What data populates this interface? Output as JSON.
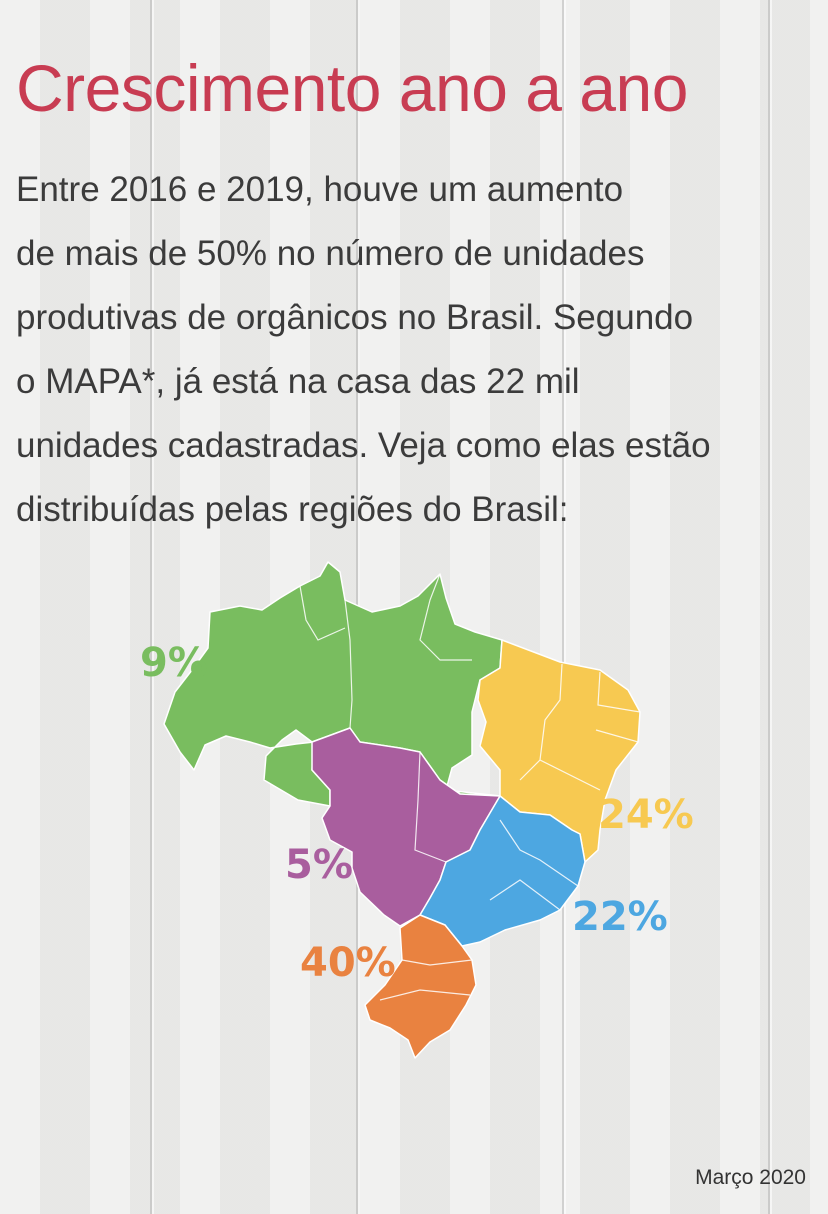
{
  "title": "Crescimento ano a ano",
  "intro_lines": [
    "Entre 2016 e 2019, houve um aumento",
    "de mais de 50% no número de unidades",
    "produtivas de orgânicos no Brasil. Segundo",
    "o MAPA*, já está na casa das 22 mil",
    "unidades cadastradas. Veja como elas estão",
    "distribuídas pelas regiões do Brasil:"
  ],
  "regions": {
    "norte": {
      "label": "9%",
      "color": "#79bd5f"
    },
    "nordeste": {
      "label": "24%",
      "color": "#f7c951"
    },
    "centro_oeste": {
      "label": "5%",
      "color": "#a95e9e"
    },
    "sudeste": {
      "label": "22%",
      "color": "#4da7e1"
    },
    "sul": {
      "label": "40%",
      "color": "#e98240"
    }
  },
  "date": "Março 2020"
}
